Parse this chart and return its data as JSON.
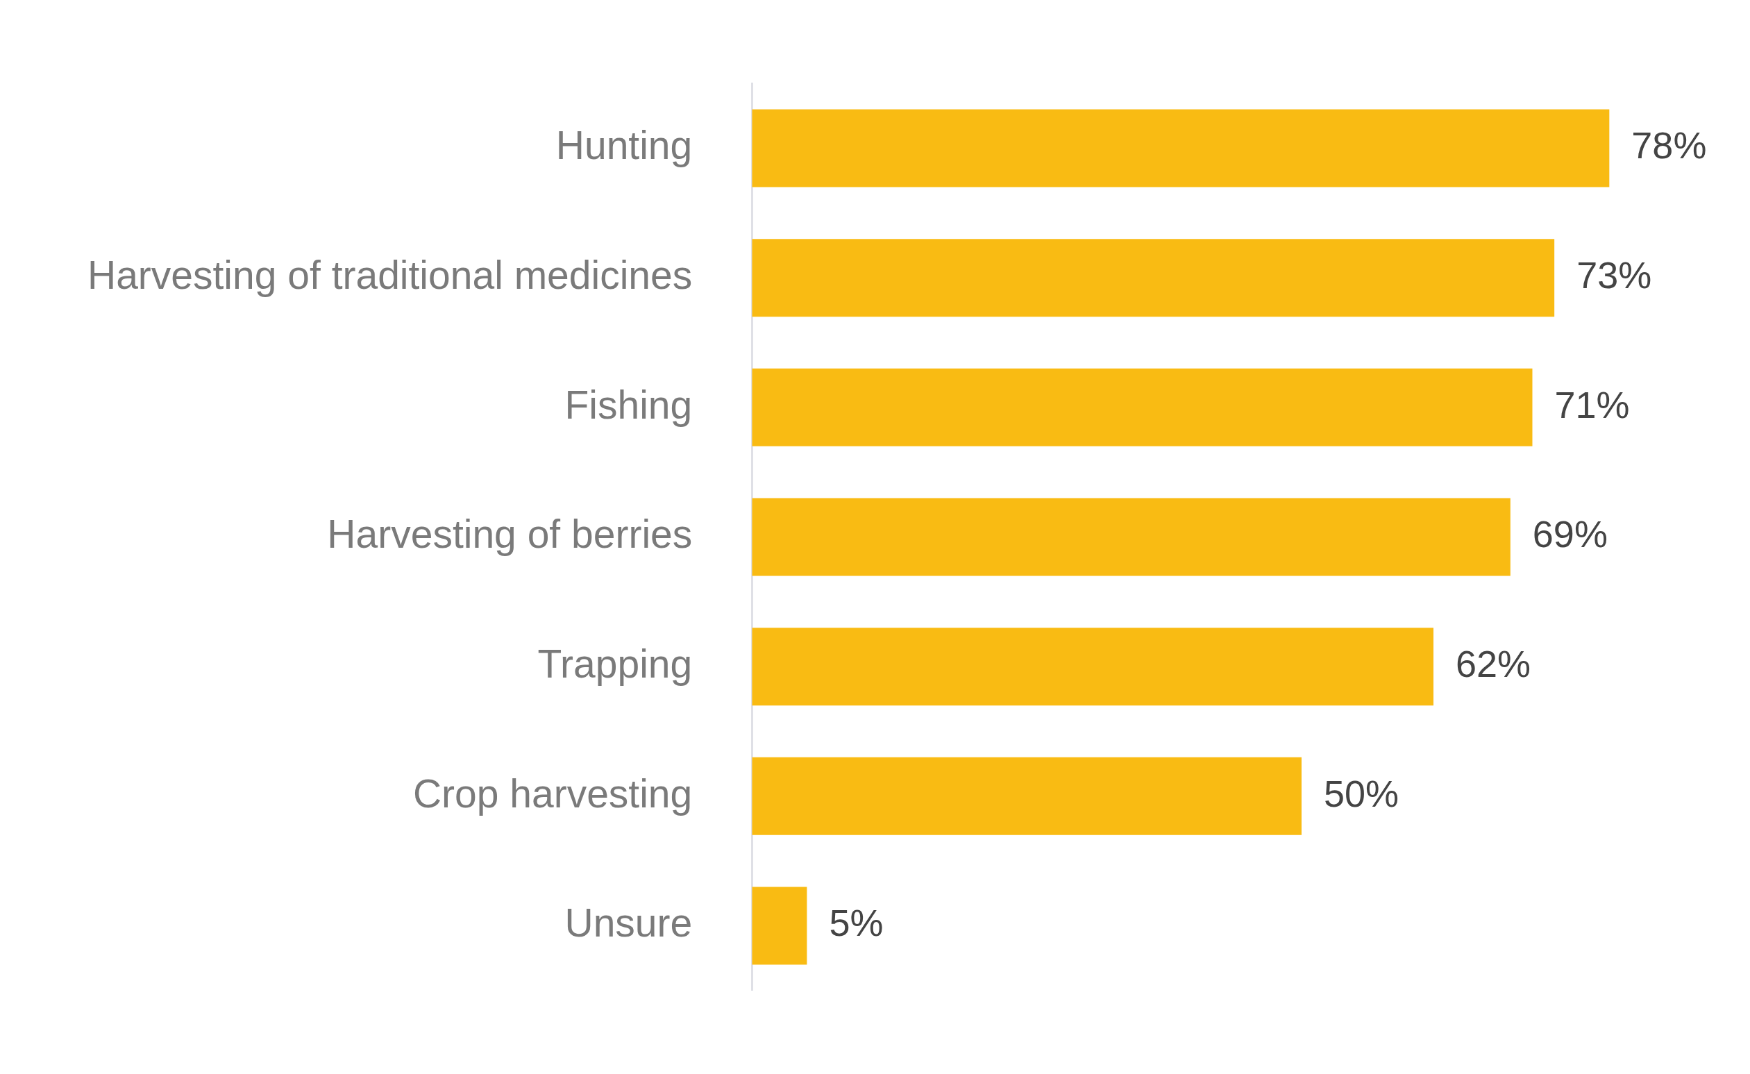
{
  "chart_data": {
    "type": "bar",
    "orientation": "horizontal",
    "categories": [
      "Hunting",
      "Harvesting of traditional medicines",
      "Fishing",
      "Harvesting of berries",
      "Trapping",
      "Crop harvesting",
      "Unsure"
    ],
    "values": [
      78,
      73,
      71,
      69,
      62,
      50,
      5
    ],
    "value_labels": [
      "78%",
      "73%",
      "71%",
      "69%",
      "62%",
      "50%",
      "5%"
    ],
    "color": "#f9bb13",
    "legend": false,
    "tick_labels": "y"
  }
}
